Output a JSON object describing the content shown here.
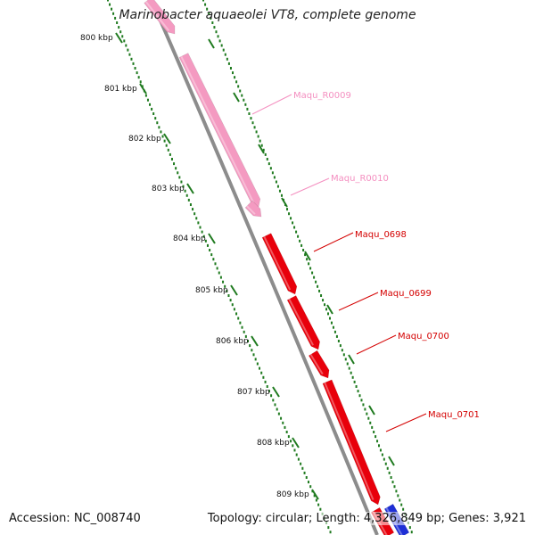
{
  "title": "Marinobacter aquaeolei VT8, complete genome",
  "footer": {
    "accession": "Accession: NC_008740",
    "summary": "Topology: circular; Length: 4,326,849 bp; Genes: 3,921"
  },
  "ruler": {
    "tick_labels": [
      "800 kbp",
      "801 kbp",
      "802 kbp",
      "803 kbp",
      "804 kbp",
      "805 kbp",
      "806 kbp",
      "807 kbp",
      "808 kbp",
      "809 kbp"
    ],
    "color": "#1f7a1f"
  },
  "genes": [
    {
      "label": "Maqu_R0009",
      "color": "#f49ac1",
      "feature": "rRNA"
    },
    {
      "label": "Maqu_R0010",
      "color": "#f49ac1",
      "feature": "tRNA"
    },
    {
      "label": "Maqu_0698",
      "color": "#e8000b",
      "feature": "CDS"
    },
    {
      "label": "Maqu_0699",
      "color": "#e8000b",
      "feature": "CDS"
    },
    {
      "label": "Maqu_0700",
      "color": "#e8000b",
      "feature": "CDS"
    },
    {
      "label": "Maqu_0701",
      "color": "#e8000b",
      "feature": "CDS"
    }
  ],
  "colors": {
    "backbone": "#8c8c8c",
    "rna": "#f49ac1",
    "cds": "#e8000b",
    "reverse_cds": "#1f2fd6",
    "label_rna": "#f48fc0",
    "label_cds": "#d40000"
  }
}
